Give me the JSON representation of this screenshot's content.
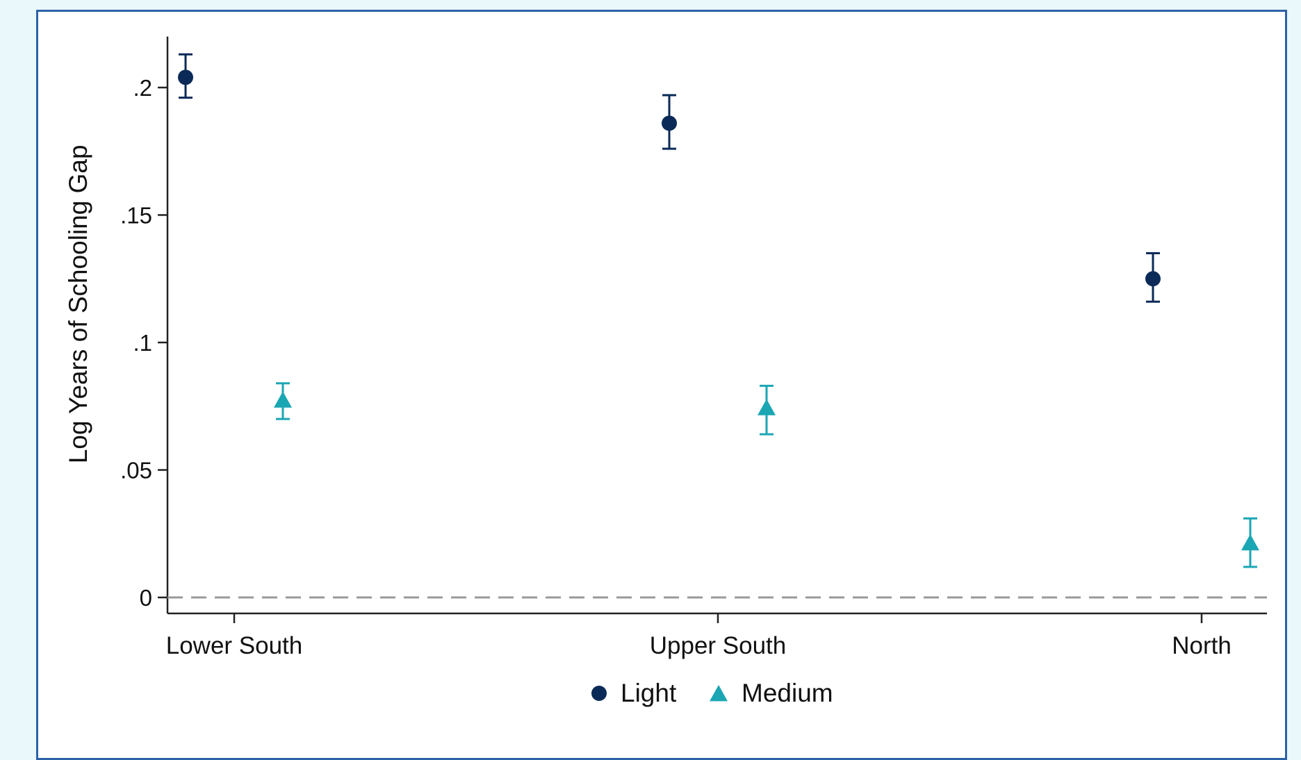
{
  "chart_data": {
    "type": "scatter",
    "ylabel": "Log Years of Schooling Gap",
    "xlabel": "",
    "categories": [
      "Lower South",
      "Upper South",
      "North"
    ],
    "ylim": [
      -0.006,
      0.22
    ],
    "yticks": [
      {
        "value": 0,
        "label": "0"
      },
      {
        "value": 0.05,
        "label": ".05"
      },
      {
        "value": 0.1,
        "label": ".1"
      },
      {
        "value": 0.15,
        "label": ".15"
      },
      {
        "value": 0.2,
        "label": ".2"
      }
    ],
    "reference_line": {
      "y": 0,
      "style": "dashed"
    },
    "grid": false,
    "legend_position": "bottom",
    "series": [
      {
        "name": "Light",
        "marker": "circle",
        "color": "#0b2a57",
        "values": [
          0.204,
          0.186,
          0.125
        ],
        "ci_low": [
          0.196,
          0.176,
          0.116
        ],
        "ci_high": [
          0.213,
          0.197,
          0.135
        ]
      },
      {
        "name": "Medium",
        "marker": "triangle",
        "color": "#1ba6b4",
        "values": [
          0.077,
          0.074,
          0.021
        ],
        "ci_low": [
          0.07,
          0.064,
          0.012
        ],
        "ci_high": [
          0.084,
          0.083,
          0.031
        ]
      }
    ]
  }
}
